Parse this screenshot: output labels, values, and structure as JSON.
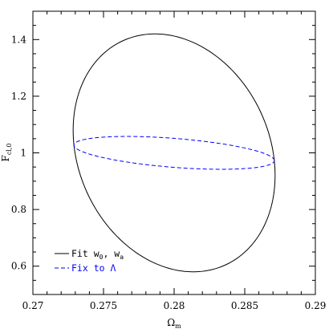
{
  "chart_data": {
    "type": "scatter",
    "title": "",
    "xlabel": "Ω",
    "xlabel_sub": "m",
    "ylabel": "F",
    "ylabel_sub": "cl,0",
    "xlim": [
      0.27,
      0.29
    ],
    "ylim": [
      0.5,
      1.5
    ],
    "grid": false,
    "legend_placement": "bottom-left",
    "xticks": [
      0.27,
      0.275,
      0.28,
      0.285,
      0.29
    ],
    "xtick_labels": [
      "0.27",
      "0.275",
      "0.28",
      "0.285",
      "0.29"
    ],
    "yticks": [
      0.6,
      0.8,
      1.0,
      1.2,
      1.4
    ],
    "ytick_labels": [
      "0.6",
      "0.8",
      "1",
      "1.2",
      "1.4"
    ],
    "series": [
      {
        "name_main": "Fit w",
        "name_sub1": "0",
        "name_mid": ", w",
        "name_sub2": "a",
        "color": "#000000",
        "dash": "solid",
        "ellipse": {
          "cx": 0.28,
          "cy": 1.0,
          "a": 0.00715,
          "b": 0.42,
          "rho": -0.19
        }
      },
      {
        "name_main": "Fix to Λ",
        "color": "#0000ff",
        "dash": "dashed",
        "ellipse": {
          "cx": 0.28,
          "cy": 1.0,
          "a": 0.0071,
          "b": 0.058,
          "rho": -0.47
        }
      }
    ]
  }
}
